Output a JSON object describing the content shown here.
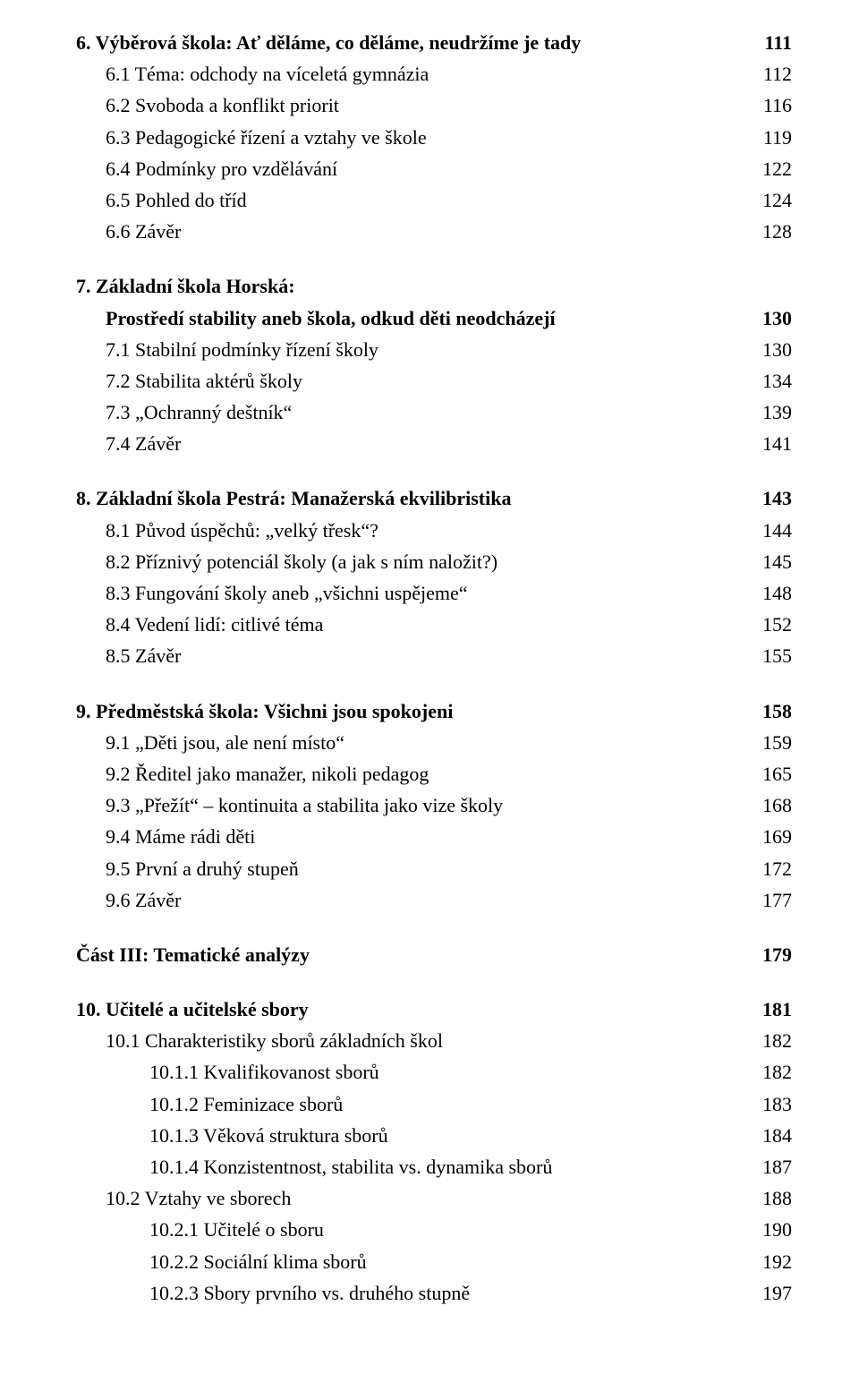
{
  "sections": [
    {
      "head": {
        "text": "6. Výběrová škola: Ať děláme, co děláme, neudržíme je tady",
        "page": "111",
        "bold": true
      },
      "items": [
        {
          "text": "6.1 Téma: odchody na víceletá gymnázia",
          "page": "112",
          "indent": 1
        },
        {
          "text": "6.2 Svoboda a konflikt priorit",
          "page": "116",
          "indent": 1
        },
        {
          "text": "6.3 Pedagogické řízení a vztahy ve škole",
          "page": "119",
          "indent": 1
        },
        {
          "text": "6.4 Podmínky pro vzdělávání",
          "page": "122",
          "indent": 1
        },
        {
          "text": "6.5 Pohled do tříd",
          "page": "124",
          "indent": 1
        },
        {
          "text": "6.6 Závěr",
          "page": "128",
          "indent": 1
        }
      ]
    },
    {
      "head": {
        "text": "7. Základní škola Horská:",
        "bold": true
      },
      "head2": {
        "text": "Prostředí stability aneb škola, odkud děti neodcházejí",
        "page": "130",
        "bold": true,
        "indent": 1
      },
      "items": [
        {
          "text": "7.1 Stabilní podmínky řízení školy",
          "page": "130",
          "indent": 1
        },
        {
          "text": "7.2 Stabilita aktérů školy",
          "page": "134",
          "indent": 1
        },
        {
          "text": "7.3 „Ochranný deštník“",
          "page": "139",
          "indent": 1
        },
        {
          "text": "7.4 Závěr",
          "page": "141",
          "indent": 1
        }
      ]
    },
    {
      "head": {
        "text": "8. Základní škola Pestrá: Manažerská ekvilibristika",
        "page": "143",
        "bold": true
      },
      "items": [
        {
          "text": "8.1 Původ úspěchů: „velký třesk“?",
          "page": "144",
          "indent": 1
        },
        {
          "text": "8.2 Příznivý potenciál školy (a jak s ním naložit?)",
          "page": "145",
          "indent": 1
        },
        {
          "text": "8.3 Fungování školy aneb „všichni uspějeme“",
          "page": "148",
          "indent": 1
        },
        {
          "text": "8.4 Vedení lidí: citlivé téma",
          "page": "152",
          "indent": 1
        },
        {
          "text": "8.5 Závěr",
          "page": "155",
          "indent": 1
        }
      ]
    },
    {
      "head": {
        "text": "9. Předměstská škola: Všichni jsou spokojeni",
        "page": "158",
        "bold": true
      },
      "items": [
        {
          "text": "9.1 „Děti jsou, ale není místo“",
          "page": "159",
          "indent": 1
        },
        {
          "text": "9.2 Ředitel jako manažer, nikoli pedagog",
          "page": "165",
          "indent": 1
        },
        {
          "text": "9.3 „Přežít“ – kontinuita a stabilita jako vize školy",
          "page": "168",
          "indent": 1
        },
        {
          "text": "9.4 Máme rádi děti",
          "page": "169",
          "indent": 1
        },
        {
          "text": "9.5 První a druhý stupeň",
          "page": "172",
          "indent": 1
        },
        {
          "text": "9.6 Závěr",
          "page": "177",
          "indent": 1
        }
      ]
    },
    {
      "head": {
        "text": "Část III: Tematické analýzy",
        "page": "179",
        "bold": true
      }
    },
    {
      "head": {
        "text": "10. Učitelé a učitelské sbory",
        "page": "181",
        "bold": true
      },
      "items": [
        {
          "text": "10.1 Charakteristiky sborů základních škol",
          "page": "182",
          "indent": 1
        },
        {
          "text": "10.1.1 Kvalifikovanost sborů",
          "page": "182",
          "indent": 2
        },
        {
          "text": "10.1.2 Feminizace sborů",
          "page": "183",
          "indent": 2
        },
        {
          "text": "10.1.3 Věková struktura sborů",
          "page": "184",
          "indent": 2
        },
        {
          "text": "10.1.4 Konzistentnost, stabilita vs. dynamika sborů",
          "page": "187",
          "indent": 2
        },
        {
          "text": "10.2 Vztahy ve sborech",
          "page": "188",
          "indent": 1
        },
        {
          "text": "10.2.1 Učitelé o sboru",
          "page": "190",
          "indent": 2
        },
        {
          "text": "10.2.2 Sociální klima sborů",
          "page": "192",
          "indent": 2
        },
        {
          "text": "10.2.3 Sbory prvního vs. druhého stupně",
          "page": "197",
          "indent": 2
        }
      ]
    }
  ]
}
